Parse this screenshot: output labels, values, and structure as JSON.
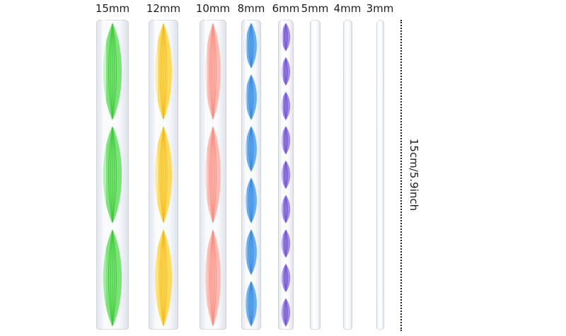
{
  "rods": [
    {
      "label": "15mm",
      "color": "#6fe36a",
      "dark": "#3cc43a",
      "patterned": true,
      "twists": 3
    },
    {
      "label": "12mm",
      "color": "#ffd84a",
      "dark": "#f2b41d",
      "patterned": true,
      "twists": 3
    },
    {
      "label": "10mm",
      "color": "#ffb3a8",
      "dark": "#f7857a",
      "patterned": true,
      "twists": 3
    },
    {
      "label": "8mm",
      "color": "#5aa8f0",
      "dark": "#2f7fdb",
      "patterned": true,
      "twists": 6
    },
    {
      "label": "6mm",
      "color": "#9a7fe8",
      "dark": "#6a4fc9",
      "patterned": true,
      "twists": 9
    },
    {
      "label": "5mm",
      "color": "#e6e9ef",
      "dark": "#c9ced8",
      "patterned": false,
      "twists": 0
    },
    {
      "label": "4mm",
      "color": "#e6e9ef",
      "dark": "#c9ced8",
      "patterned": false,
      "twists": 0
    },
    {
      "label": "3mm",
      "color": "#e6e9ef",
      "dark": "#c9ced8",
      "patterned": false,
      "twists": 0
    }
  ],
  "measurement": {
    "text": "15cm/5.9inch"
  }
}
